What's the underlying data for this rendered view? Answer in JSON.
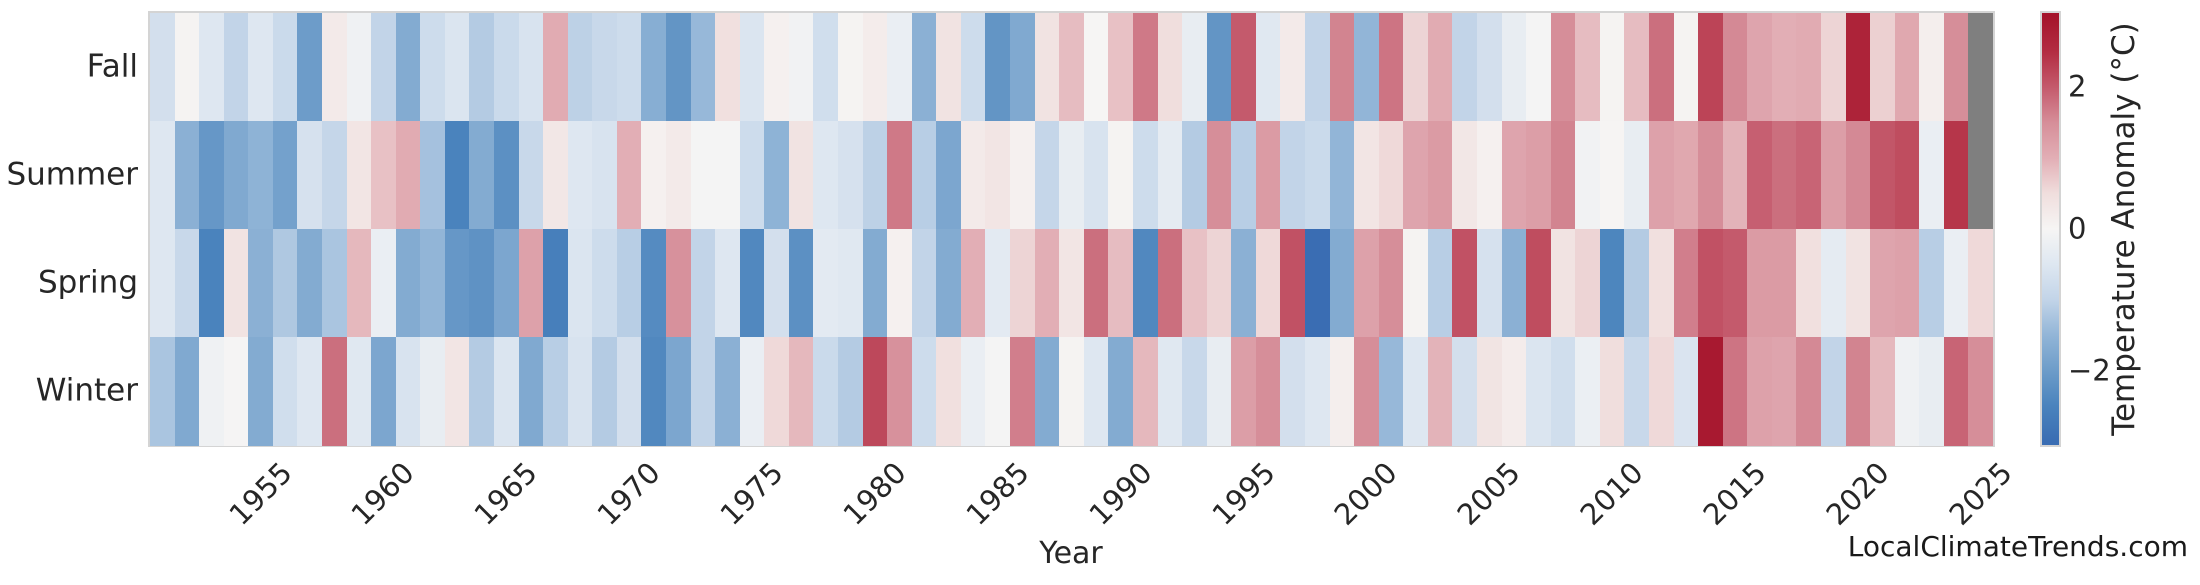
{
  "figure": {
    "watermark": "LocalClimateTrends.com"
  },
  "chart_data": {
    "type": "heatmap",
    "title": "",
    "xlabel": "Year",
    "ylabel": "",
    "grid": false,
    "legend_position": "colorbar-right",
    "rows": [
      "Fall",
      "Summer",
      "Spring",
      "Winter"
    ],
    "years": [
      1951,
      1952,
      1953,
      1954,
      1955,
      1956,
      1957,
      1958,
      1959,
      1960,
      1961,
      1962,
      1963,
      1964,
      1965,
      1966,
      1967,
      1968,
      1969,
      1970,
      1971,
      1972,
      1973,
      1974,
      1975,
      1976,
      1977,
      1978,
      1979,
      1980,
      1981,
      1982,
      1983,
      1984,
      1985,
      1986,
      1987,
      1988,
      1989,
      1990,
      1991,
      1992,
      1993,
      1994,
      1995,
      1996,
      1997,
      1998,
      1999,
      2000,
      2001,
      2002,
      2003,
      2004,
      2005,
      2006,
      2007,
      2008,
      2009,
      2010,
      2011,
      2012,
      2013,
      2014,
      2015,
      2016,
      2017,
      2018,
      2019,
      2020,
      2021,
      2022,
      2023,
      2024,
      2025
    ],
    "xtick_labels": [
      "1955",
      "1960",
      "1965",
      "1970",
      "1975",
      "1980",
      "1985",
      "1990",
      "1995",
      "2000",
      "2005",
      "2010",
      "2015",
      "2020",
      "2025"
    ],
    "series": [
      {
        "name": "Fall",
        "values": [
          -0.7,
          0.05,
          -0.5,
          -1.0,
          -0.5,
          -0.85,
          -2.0,
          0.25,
          -0.15,
          -1.0,
          -1.7,
          -0.8,
          -0.55,
          -1.15,
          -0.85,
          -0.6,
          1.05,
          -1.05,
          -0.9,
          -0.8,
          -1.65,
          -2.15,
          -1.45,
          0.45,
          -0.55,
          0.1,
          -0.1,
          -0.75,
          0.05,
          0.2,
          -0.25,
          -1.6,
          0.4,
          -0.8,
          -2.15,
          -1.75,
          0.4,
          0.85,
          0.0,
          0.8,
          1.7,
          0.5,
          -0.3,
          -2.15,
          2.0,
          -0.45,
          0.25,
          -1.0,
          1.6,
          -1.5,
          1.75,
          0.6,
          1.05,
          -1.0,
          -0.7,
          -0.3,
          -0.05,
          1.5,
          0.85,
          0.05,
          0.85,
          1.8,
          0.05,
          2.25,
          1.55,
          1.15,
          1.0,
          1.05,
          0.6,
          2.7,
          0.65,
          1.1,
          0.15,
          1.5,
          null
        ]
      },
      {
        "name": "Summer",
        "values": [
          -0.5,
          -1.6,
          -2.1,
          -1.75,
          -1.55,
          -1.9,
          -0.65,
          -0.95,
          0.35,
          0.8,
          1.05,
          -1.3,
          -2.5,
          -1.7,
          -2.25,
          -0.9,
          0.3,
          -0.5,
          -0.6,
          1.0,
          0.1,
          0.25,
          -0.05,
          -0.05,
          -0.8,
          -1.55,
          0.4,
          -0.5,
          -0.65,
          -1.05,
          1.7,
          -1.1,
          -1.8,
          0.25,
          0.35,
          0.1,
          -0.95,
          -0.3,
          -0.6,
          0.05,
          -0.8,
          -0.35,
          -1.15,
          1.5,
          -1.1,
          1.3,
          -1.0,
          -0.85,
          -1.5,
          0.35,
          0.55,
          1.15,
          1.3,
          0.3,
          0.1,
          1.15,
          1.25,
          1.6,
          -0.1,
          0.03,
          -0.3,
          1.2,
          1.1,
          1.5,
          0.95,
          1.95,
          1.8,
          1.9,
          1.25,
          1.55,
          2.05,
          2.15,
          -0.25,
          2.4,
          null
        ]
      },
      {
        "name": "Spring",
        "values": [
          -0.5,
          -0.9,
          -2.5,
          0.4,
          -1.6,
          -1.2,
          -1.7,
          -1.25,
          0.9,
          -0.25,
          -1.7,
          -1.5,
          -2.1,
          -2.2,
          -1.8,
          1.2,
          -2.6,
          -0.55,
          -0.8,
          -1.1,
          -2.35,
          1.45,
          -1.0,
          -0.5,
          -2.4,
          -0.7,
          -2.25,
          -0.4,
          -0.45,
          -1.7,
          0.1,
          -1.0,
          -1.7,
          1.0,
          -0.4,
          0.6,
          1.0,
          0.35,
          1.8,
          0.85,
          -2.4,
          1.8,
          0.8,
          0.6,
          -1.6,
          0.55,
          2.1,
          -3.0,
          -1.7,
          1.2,
          1.5,
          0.05,
          -1.1,
          2.1,
          -0.65,
          -1.6,
          2.15,
          0.4,
          0.6,
          -2.45,
          -1.15,
          0.45,
          1.65,
          2.1,
          2.0,
          1.3,
          1.3,
          0.45,
          -0.35,
          0.4,
          1.15,
          1.2,
          -1.1,
          -0.25,
          0.55
        ]
      },
      {
        "name": "Winter",
        "values": [
          -1.25,
          -1.75,
          -0.15,
          -0.02,
          -1.7,
          -0.75,
          -0.5,
          1.8,
          -0.45,
          -1.8,
          -0.6,
          -0.3,
          0.35,
          -1.15,
          -0.55,
          -1.75,
          -1.1,
          -0.6,
          -1.15,
          -0.7,
          -2.4,
          -1.8,
          -1.0,
          -1.6,
          -0.25,
          0.55,
          0.9,
          -0.85,
          -1.15,
          2.2,
          1.45,
          -0.8,
          0.45,
          -0.25,
          -0.05,
          1.65,
          -1.7,
          0.05,
          -0.5,
          -1.7,
          0.9,
          -0.45,
          -0.9,
          -0.3,
          1.25,
          1.5,
          -0.7,
          -0.5,
          0.15,
          1.5,
          -1.45,
          -0.5,
          0.95,
          -0.7,
          0.38,
          0.2,
          -0.55,
          -0.75,
          -0.22,
          0.5,
          -0.9,
          0.55,
          -0.58,
          2.9,
          1.75,
          1.2,
          1.15,
          1.55,
          -1.0,
          1.6,
          0.9,
          -0.15,
          -0.3,
          1.9,
          1.5
        ]
      }
    ],
    "missing_color": "#7f7f7f",
    "colorbar": {
      "label": "Temperature Anomaly (°C)",
      "tick_labels": [
        "2",
        "0",
        "−2"
      ],
      "tick_values": [
        2,
        0,
        -2
      ],
      "vmin": -3.05,
      "vmax": 3.05,
      "stops": [
        [
          -3.0,
          "#3a6db3"
        ],
        [
          -2.5,
          "#4a83bd"
        ],
        [
          -2.0,
          "#6d9cc9"
        ],
        [
          -1.5,
          "#92b5d7"
        ],
        [
          -1.0,
          "#c2d4e8"
        ],
        [
          -0.5,
          "#dee7f1"
        ],
        [
          0.0,
          "#f6f5f4"
        ],
        [
          0.5,
          "#f0dedd"
        ],
        [
          1.0,
          "#e2aeb5"
        ],
        [
          1.5,
          "#d68e99"
        ],
        [
          2.0,
          "#c45a6c"
        ],
        [
          2.5,
          "#b32d42"
        ],
        [
          3.0,
          "#a5142b"
        ]
      ]
    }
  }
}
